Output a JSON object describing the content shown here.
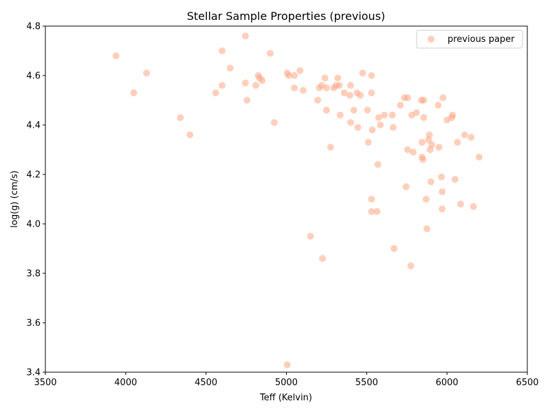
{
  "chart_data": {
    "type": "scatter",
    "title": "Stellar Sample Properties (previous)",
    "xlabel": "Teff (Kelvin)",
    "ylabel": "log(g) (cm/s)",
    "xlim": [
      3500,
      6500
    ],
    "ylim": [
      3.4,
      4.8
    ],
    "xticks": [
      3500,
      4000,
      4500,
      5000,
      5500,
      6000,
      6500
    ],
    "yticks": [
      3.4,
      3.6,
      3.8,
      4.0,
      4.2,
      4.4,
      4.6,
      4.8
    ],
    "ytick_labels": [
      "3.4",
      "3.6",
      "3.8",
      "4.0",
      "4.2",
      "4.4",
      "4.6",
      "4.8"
    ],
    "grid": false,
    "legend": {
      "placement": "top-right",
      "entries": [
        "previous paper"
      ]
    },
    "colors": {
      "marker": "#ffa07a",
      "marker_alpha": 0.5
    },
    "series": [
      {
        "name": "previous paper",
        "points": [
          [
            3940,
            4.68
          ],
          [
            4130,
            4.61
          ],
          [
            4050,
            4.53
          ],
          [
            4340,
            4.43
          ],
          [
            4400,
            4.36
          ],
          [
            4600,
            4.7
          ],
          [
            4650,
            4.63
          ],
          [
            4600,
            4.56
          ],
          [
            4560,
            4.53
          ],
          [
            4745,
            4.76
          ],
          [
            4745,
            4.57
          ],
          [
            4755,
            4.5
          ],
          [
            4810,
            4.56
          ],
          [
            4825,
            4.6
          ],
          [
            4835,
            4.59
          ],
          [
            4850,
            4.58
          ],
          [
            4900,
            4.69
          ],
          [
            4925,
            4.41
          ],
          [
            5005,
            4.61
          ],
          [
            5015,
            4.6
          ],
          [
            5050,
            4.6
          ],
          [
            5050,
            4.55
          ],
          [
            5085,
            4.62
          ],
          [
            5105,
            4.54
          ],
          [
            5150,
            3.95
          ],
          [
            5195,
            4.5
          ],
          [
            5205,
            4.55
          ],
          [
            5220,
            4.56
          ],
          [
            5225,
            3.86
          ],
          [
            5240,
            4.59
          ],
          [
            5250,
            4.55
          ],
          [
            5250,
            4.46
          ],
          [
            5275,
            4.31
          ],
          [
            5295,
            4.55
          ],
          [
            5310,
            4.56
          ],
          [
            5320,
            4.59
          ],
          [
            5330,
            4.56
          ],
          [
            5335,
            4.44
          ],
          [
            5360,
            4.53
          ],
          [
            5395,
            4.52
          ],
          [
            5400,
            4.56
          ],
          [
            5400,
            4.41
          ],
          [
            5420,
            4.46
          ],
          [
            5440,
            4.53
          ],
          [
            5445,
            4.39
          ],
          [
            5460,
            4.52
          ],
          [
            5475,
            4.61
          ],
          [
            5505,
            4.46
          ],
          [
            5510,
            4.33
          ],
          [
            5530,
            4.6
          ],
          [
            5530,
            4.53
          ],
          [
            5530,
            4.1
          ],
          [
            5535,
            4.38
          ],
          [
            5530,
            4.05
          ],
          [
            5565,
            4.05
          ],
          [
            5570,
            4.24
          ],
          [
            5575,
            4.43
          ],
          [
            5585,
            4.4
          ],
          [
            5610,
            4.44
          ],
          [
            5660,
            4.44
          ],
          [
            5665,
            4.39
          ],
          [
            5670,
            3.9
          ],
          [
            5710,
            4.48
          ],
          [
            5735,
            4.51
          ],
          [
            5745,
            4.15
          ],
          [
            5755,
            4.51
          ],
          [
            5755,
            4.3
          ],
          [
            5775,
            3.83
          ],
          [
            5780,
            4.44
          ],
          [
            5790,
            4.29
          ],
          [
            5810,
            4.45
          ],
          [
            5840,
            4.5
          ],
          [
            5845,
            4.33
          ],
          [
            5845,
            4.27
          ],
          [
            5850,
            4.26
          ],
          [
            5855,
            4.5
          ],
          [
            5855,
            4.43
          ],
          [
            5870,
            4.1
          ],
          [
            5875,
            3.98
          ],
          [
            5885,
            4.34
          ],
          [
            5890,
            4.36
          ],
          [
            5895,
            4.3
          ],
          [
            5900,
            4.17
          ],
          [
            5905,
            4.32
          ],
          [
            5945,
            4.48
          ],
          [
            5950,
            4.31
          ],
          [
            5965,
            4.19
          ],
          [
            5970,
            4.13
          ],
          [
            5970,
            4.06
          ],
          [
            5975,
            4.51
          ],
          [
            6000,
            4.42
          ],
          [
            6030,
            4.43
          ],
          [
            6035,
            4.44
          ],
          [
            6050,
            4.18
          ],
          [
            6065,
            4.33
          ],
          [
            6085,
            4.08
          ],
          [
            6110,
            4.36
          ],
          [
            6150,
            4.35
          ],
          [
            6165,
            4.07
          ],
          [
            6200,
            4.27
          ],
          [
            5005,
            3.43
          ]
        ]
      }
    ]
  }
}
